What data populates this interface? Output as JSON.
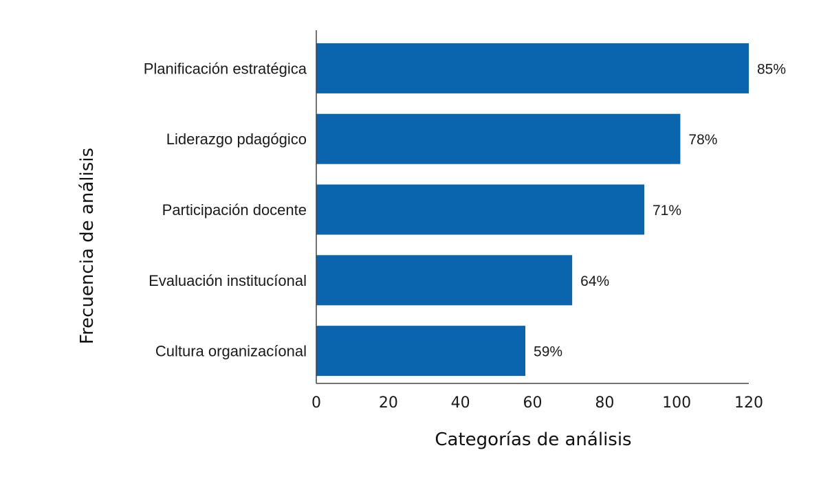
{
  "chart_data": {
    "type": "bar",
    "orientation": "horizontal",
    "categories": [
      "Planificación estratégica",
      "Liderazgo pdagógico",
      "Participación docente",
      "Evaluación institucíonal",
      "Cultura organizacíonal"
    ],
    "values": [
      120,
      101,
      91,
      71,
      58
    ],
    "data_labels": [
      "85%",
      "78%",
      "71%",
      "64%",
      "59%"
    ],
    "xlabel": "Categorías de análisis",
    "ylabel": "Frecuencia de análisis",
    "xlim": [
      0,
      120
    ],
    "xticks": [
      "0",
      "20",
      "40",
      "60",
      "80",
      "100",
      "120"
    ],
    "bar_color": "#0b64ae",
    "grid": false
  }
}
